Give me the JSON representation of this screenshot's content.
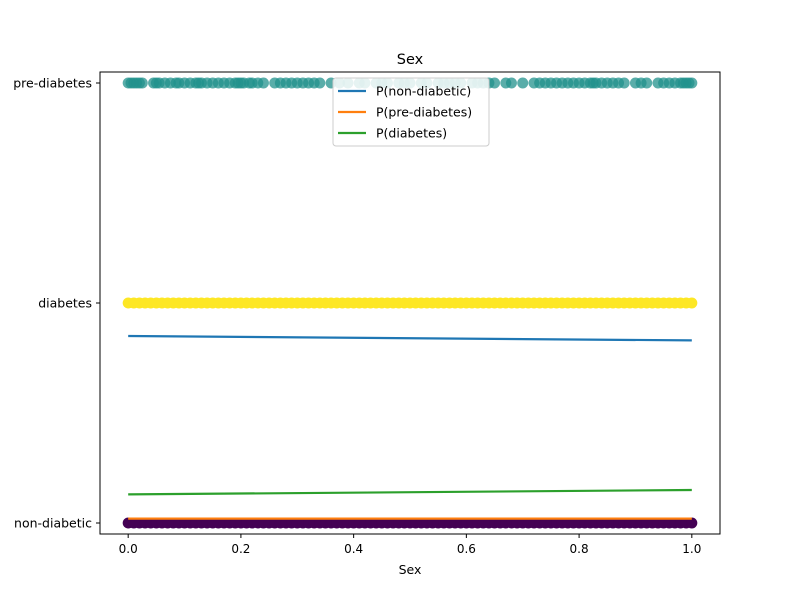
{
  "chart_data": {
    "type": "scatter",
    "title": "Sex",
    "xlabel": "Sex",
    "ylabel": "",
    "xlim": [
      -0.05,
      1.05
    ],
    "ylim": [
      -0.05,
      2.05
    ],
    "x_ticks": [
      0.0,
      0.2,
      0.4,
      0.6,
      0.8,
      1.0
    ],
    "x_tick_labels": [
      "0.0",
      "0.2",
      "0.4",
      "0.6",
      "0.8",
      "1.0"
    ],
    "y_ticks": [
      0,
      1,
      2
    ],
    "y_tick_labels": [
      "non-diabetic",
      "diabetes",
      "pre-diabetes"
    ],
    "grid": false,
    "legend_position": "top-center",
    "scatter_groups": [
      {
        "category": "pre-diabetes",
        "y": 2,
        "color": "#21918c",
        "opacity": 0.75,
        "x": [
          0.0,
          0.005,
          0.01,
          0.015,
          0.02,
          0.025,
          0.045,
          0.05,
          0.055,
          0.065,
          0.075,
          0.085,
          0.09,
          0.1,
          0.11,
          0.12,
          0.125,
          0.13,
          0.14,
          0.15,
          0.16,
          0.17,
          0.18,
          0.19,
          0.195,
          0.2,
          0.205,
          0.215,
          0.22,
          0.23,
          0.24,
          0.26,
          0.27,
          0.28,
          0.29,
          0.3,
          0.31,
          0.32,
          0.33,
          0.34,
          0.36,
          0.375,
          0.39,
          0.41,
          0.42,
          0.44,
          0.45,
          0.46,
          0.48,
          0.49,
          0.5,
          0.52,
          0.53,
          0.55,
          0.56,
          0.57,
          0.58,
          0.59,
          0.61,
          0.62,
          0.63,
          0.64,
          0.65,
          0.67,
          0.68,
          0.7,
          0.72,
          0.73,
          0.74,
          0.75,
          0.76,
          0.77,
          0.78,
          0.79,
          0.8,
          0.81,
          0.82,
          0.825,
          0.83,
          0.84,
          0.85,
          0.86,
          0.87,
          0.88,
          0.9,
          0.91,
          0.92,
          0.94,
          0.95,
          0.96,
          0.97,
          0.98,
          0.985,
          0.99,
          0.995,
          1.0
        ]
      },
      {
        "category": "diabetes",
        "y": 1,
        "color": "#fde725",
        "opacity": 1,
        "x": [
          0.0,
          1.0
        ]
      },
      {
        "category": "non-diabetic",
        "y": 0,
        "color": "#440154",
        "opacity": 1,
        "x": [
          0.0,
          1.0
        ]
      }
    ],
    "series": [
      {
        "name": "P(non-diabetic)",
        "color": "#1f77b4",
        "x": [
          0.0,
          1.0
        ],
        "values": [
          0.85,
          0.83
        ]
      },
      {
        "name": "P(pre-diabetes)",
        "color": "#ff7f0e",
        "x": [
          0.0,
          1.0
        ],
        "values": [
          0.02,
          0.02
        ]
      },
      {
        "name": "P(diabetes)",
        "color": "#2ca02c",
        "x": [
          0.0,
          1.0
        ],
        "values": [
          0.13,
          0.15
        ]
      }
    ]
  }
}
